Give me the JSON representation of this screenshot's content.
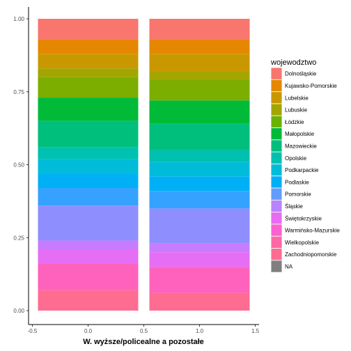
{
  "chart_data": {
    "type": "bar",
    "stacked": "fill",
    "xlabel": "W. wyższe/policealne a pozostałe",
    "ylabel": "",
    "x_ticks": [
      "-0.5",
      "0.0",
      "0.5",
      "1.0",
      "1.5"
    ],
    "y_ticks": [
      "0.00",
      "0.25",
      "0.50",
      "0.75",
      "1.00"
    ],
    "xlim": [
      -0.5,
      1.5
    ],
    "ylim": [
      0,
      1
    ],
    "grid": false,
    "legend": {
      "title": "wojewodztwo",
      "position": "right",
      "entries": [
        {
          "label": "Dolnośląskie",
          "color": "#F8766D"
        },
        {
          "label": "Kujawsko-Pomorskie",
          "color": "#E58700"
        },
        {
          "label": "Lubelskie",
          "color": "#C99800"
        },
        {
          "label": "Lubuskie",
          "color": "#A3A500"
        },
        {
          "label": "Łódzkie",
          "color": "#6BB100"
        },
        {
          "label": "Małopolskie",
          "color": "#00BA38"
        },
        {
          "label": "Mazowieckie",
          "color": "#00BF7D"
        },
        {
          "label": "Opolskie",
          "color": "#00C0AF"
        },
        {
          "label": "Podkarpackie",
          "color": "#00BCD8"
        },
        {
          "label": "Podlaskie",
          "color": "#00B0F6"
        },
        {
          "label": "Pomorskie",
          "color": "#619CFF"
        },
        {
          "label": "Śląskie",
          "color": "#B983FF"
        },
        {
          "label": "Świętokrzyskie",
          "color": "#E76BF3"
        },
        {
          "label": "Warmińsko-Mazurskie",
          "color": "#FD61D1"
        },
        {
          "label": "Wielkopolskie",
          "color": "#FF67A4"
        },
        {
          "label": "Zachodniopomorskie",
          "color": "#FF6C91"
        },
        {
          "label": "NA",
          "color": "#7F7F7F"
        }
      ]
    },
    "bars": [
      {
        "x": 0,
        "segments": [
          {
            "label": "Dolnośląskie",
            "color": "#F8766D",
            "value": 0.07
          },
          {
            "label": "Kujawsko-Pomorskie",
            "color": "#E58700",
            "value": 0.05
          },
          {
            "label": "Lubelskie",
            "color": "#C99800",
            "value": 0.05
          },
          {
            "label": "Lubuskie",
            "color": "#A3A500",
            "value": 0.03
          },
          {
            "label": "Łódzkie",
            "color": "#7CAE00",
            "value": 0.07
          },
          {
            "label": "Małopolskie",
            "color": "#00BA38",
            "value": 0.08
          },
          {
            "label": "Mazowieckie",
            "color": "#00BF7D",
            "value": 0.09
          },
          {
            "label": "Opolskie",
            "color": "#00C0AF",
            "value": 0.04
          },
          {
            "label": "Podkarpackie",
            "color": "#00BCD8",
            "value": 0.05
          },
          {
            "label": "Podlaskie",
            "color": "#00B0F6",
            "value": 0.05
          },
          {
            "label": "Pomorskie",
            "color": "#35A2FF",
            "value": 0.06
          },
          {
            "label": "Śląskie",
            "color": "#8E8EFF",
            "value": 0.12
          },
          {
            "label": "Świętokrzyskie",
            "color": "#C77CFF",
            "value": 0.03
          },
          {
            "label": "Warmińsko-Mazurskie",
            "color": "#E56EF5",
            "value": 0.05
          },
          {
            "label": "Wielkopolskie",
            "color": "#FF62BC",
            "value": 0.09
          },
          {
            "label": "Zachodniopomorskie",
            "color": "#FF6C91",
            "value": 0.07
          }
        ]
      },
      {
        "x": 1,
        "segments": [
          {
            "label": "Dolnośląskie",
            "color": "#F8766D",
            "value": 0.07
          },
          {
            "label": "Kujawsko-Pomorskie",
            "color": "#E58700",
            "value": 0.05
          },
          {
            "label": "Lubelskie",
            "color": "#C99800",
            "value": 0.06
          },
          {
            "label": "Lubuskie",
            "color": "#A3A500",
            "value": 0.03
          },
          {
            "label": "Łódzkie",
            "color": "#7CAE00",
            "value": 0.07
          },
          {
            "label": "Małopolskie",
            "color": "#00BA38",
            "value": 0.08
          },
          {
            "label": "Mazowieckie",
            "color": "#00BF7D",
            "value": 0.09
          },
          {
            "label": "Opolskie",
            "color": "#00C0AF",
            "value": 0.04
          },
          {
            "label": "Podkarpackie",
            "color": "#00BCD8",
            "value": 0.05
          },
          {
            "label": "Podlaskie",
            "color": "#00B0F6",
            "value": 0.05
          },
          {
            "label": "Pomorskie",
            "color": "#35A2FF",
            "value": 0.06
          },
          {
            "label": "Śląskie",
            "color": "#8E8EFF",
            "value": 0.12
          },
          {
            "label": "Świętokrzyskie",
            "color": "#C77CFF",
            "value": 0.03
          },
          {
            "label": "Warmińsko-Mazurskie",
            "color": "#E56EF5",
            "value": 0.05
          },
          {
            "label": "Wielkopolskie",
            "color": "#FF62BC",
            "value": 0.09
          },
          {
            "label": "Zachodniopomorskie",
            "color": "#FF6C91",
            "value": 0.06
          }
        ]
      }
    ]
  }
}
